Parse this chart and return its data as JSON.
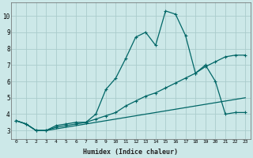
{
  "xlabel": "Humidex (Indice chaleur)",
  "ylabel": "",
  "bg_color": "#cce8e8",
  "grid_color": "#aacccc",
  "line_color": "#006666",
  "xlim": [
    -0.5,
    23.5
  ],
  "ylim": [
    2.5,
    10.8
  ],
  "xticks": [
    0,
    1,
    2,
    3,
    4,
    5,
    6,
    7,
    8,
    9,
    10,
    11,
    12,
    13,
    14,
    15,
    16,
    17,
    18,
    19,
    20,
    21,
    22,
    23
  ],
  "yticks": [
    3,
    4,
    5,
    6,
    7,
    8,
    9,
    10
  ],
  "series": [
    [
      3.6,
      3.4,
      3.0,
      3.0,
      3.3,
      3.4,
      3.5,
      3.5,
      4.0,
      5.5,
      6.2,
      7.4,
      8.7,
      9.0,
      8.2,
      10.3,
      10.1,
      8.8,
      6.5,
      7.0,
      6.0,
      4.0,
      4.1,
      4.1
    ],
    [
      3.6,
      3.4,
      3.0,
      3.0,
      3.2,
      3.3,
      3.4,
      3.5,
      3.7,
      3.9,
      4.1,
      4.5,
      4.8,
      5.1,
      5.3,
      5.6,
      5.9,
      6.2,
      6.5,
      6.9,
      7.2,
      7.5,
      7.6,
      7.6
    ],
    [
      3.6,
      3.4,
      3.0,
      3.0,
      3.1,
      3.2,
      3.3,
      3.4,
      3.5,
      3.6,
      3.7,
      3.8,
      3.9,
      4.0,
      4.1,
      4.2,
      4.3,
      4.4,
      4.5,
      4.6,
      4.7,
      4.8,
      4.9,
      5.0
    ]
  ]
}
